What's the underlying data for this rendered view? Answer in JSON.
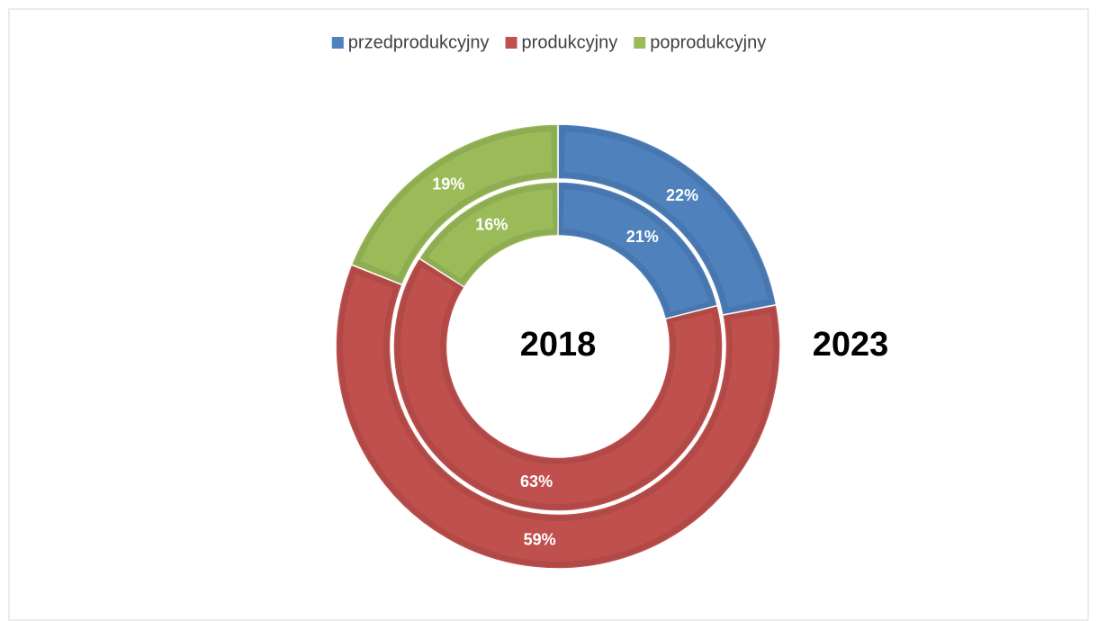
{
  "chart_data": {
    "type": "donut",
    "categories": [
      "przedprodukcyjny",
      "produkcyjny",
      "poprodukcyjny"
    ],
    "colors": [
      "#4f81bd",
      "#c0504d",
      "#9bbb59"
    ],
    "series": [
      {
        "name": "2018",
        "values": [
          21,
          63,
          16
        ],
        "value_labels": [
          "21%",
          "63%",
          "16%"
        ]
      },
      {
        "name": "2023",
        "values": [
          22,
          59,
          19
        ],
        "value_labels": [
          "22%",
          "59%",
          "19%"
        ]
      }
    ],
    "legend": "top"
  }
}
